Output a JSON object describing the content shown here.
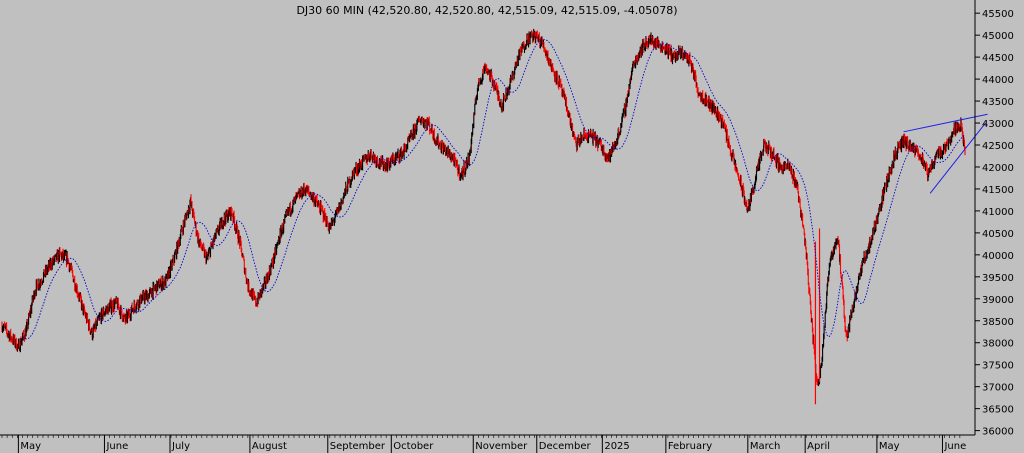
{
  "chart_data": {
    "type": "candlestick",
    "title": "DJ30 60 MIN (42,520.80, 42,520.80, 42,515.09, 42,515.09, -4.05078)",
    "ylim": [
      35900,
      45800
    ],
    "y_ticks": [
      36000,
      36500,
      37000,
      37500,
      38000,
      38500,
      39000,
      39500,
      40000,
      40500,
      41000,
      41500,
      42000,
      42500,
      43000,
      43500,
      44000,
      44500,
      45000,
      45500
    ],
    "y_tick_labels": [
      "36000",
      "36500",
      "37000",
      "37500",
      "38000",
      "38500",
      "39000",
      "39500",
      "40000",
      "40500",
      "41000",
      "41500",
      "42000",
      "42500",
      "43000",
      "43500",
      "44000",
      "44500",
      "45000",
      "45500"
    ],
    "x_range": [
      0,
      470
    ],
    "x_ticks": [
      {
        "label": "May",
        "x": 8
      },
      {
        "label": "June",
        "x": 50
      },
      {
        "label": "July",
        "x": 82
      },
      {
        "label": "August",
        "x": 121
      },
      {
        "label": "September",
        "x": 159
      },
      {
        "label": "October",
        "x": 190
      },
      {
        "label": "November",
        "x": 230
      },
      {
        "label": "December",
        "x": 261
      },
      {
        "label": "2025",
        "x": 293
      },
      {
        "label": "February",
        "x": 324
      },
      {
        "label": "March",
        "x": 364
      },
      {
        "label": "April",
        "x": 392
      },
      {
        "label": "May",
        "x": 427
      },
      {
        "label": "June",
        "x": 459
      }
    ],
    "price_path": [
      [
        0,
        38400
      ],
      [
        4,
        38150
      ],
      [
        8,
        37900
      ],
      [
        12,
        38300
      ],
      [
        16,
        39200
      ],
      [
        20,
        39500
      ],
      [
        24,
        39800
      ],
      [
        28,
        40000
      ],
      [
        32,
        39900
      ],
      [
        36,
        39300
      ],
      [
        40,
        38700
      ],
      [
        44,
        38200
      ],
      [
        48,
        38600
      ],
      [
        52,
        38800
      ],
      [
        56,
        38900
      ],
      [
        60,
        38500
      ],
      [
        64,
        38800
      ],
      [
        68,
        39000
      ],
      [
        72,
        39100
      ],
      [
        76,
        39300
      ],
      [
        80,
        39400
      ],
      [
        84,
        39900
      ],
      [
        88,
        40600
      ],
      [
        92,
        41200
      ],
      [
        96,
        40300
      ],
      [
        100,
        39900
      ],
      [
        104,
        40400
      ],
      [
        108,
        40800
      ],
      [
        112,
        41000
      ],
      [
        116,
        40300
      ],
      [
        120,
        39300
      ],
      [
        124,
        38900
      ],
      [
        128,
        39300
      ],
      [
        132,
        39800
      ],
      [
        136,
        40500
      ],
      [
        140,
        41000
      ],
      [
        144,
        41300
      ],
      [
        148,
        41500
      ],
      [
        152,
        41300
      ],
      [
        156,
        41000
      ],
      [
        160,
        40600
      ],
      [
        164,
        41000
      ],
      [
        168,
        41500
      ],
      [
        172,
        41900
      ],
      [
        176,
        42100
      ],
      [
        180,
        42300
      ],
      [
        184,
        42100
      ],
      [
        188,
        42050
      ],
      [
        192,
        42200
      ],
      [
        196,
        42350
      ],
      [
        200,
        42700
      ],
      [
        204,
        43100
      ],
      [
        208,
        43000
      ],
      [
        212,
        42600
      ],
      [
        216,
        42400
      ],
      [
        220,
        42200
      ],
      [
        224,
        41800
      ],
      [
        228,
        42200
      ],
      [
        232,
        43800
      ],
      [
        236,
        44300
      ],
      [
        240,
        43900
      ],
      [
        244,
        43400
      ],
      [
        248,
        43900
      ],
      [
        252,
        44500
      ],
      [
        256,
        44900
      ],
      [
        260,
        45000
      ],
      [
        264,
        44800
      ],
      [
        268,
        44300
      ],
      [
        272,
        43900
      ],
      [
        276,
        43300
      ],
      [
        280,
        42500
      ],
      [
        284,
        42700
      ],
      [
        288,
        42700
      ],
      [
        292,
        42500
      ],
      [
        296,
        42200
      ],
      [
        300,
        42600
      ],
      [
        304,
        43300
      ],
      [
        308,
        44300
      ],
      [
        312,
        44700
      ],
      [
        316,
        44900
      ],
      [
        320,
        44800
      ],
      [
        324,
        44700
      ],
      [
        328,
        44500
      ],
      [
        332,
        44600
      ],
      [
        336,
        44400
      ],
      [
        340,
        43700
      ],
      [
        344,
        43500
      ],
      [
        348,
        43300
      ],
      [
        352,
        43000
      ],
      [
        356,
        42300
      ],
      [
        360,
        41700
      ],
      [
        364,
        41000
      ],
      [
        368,
        41800
      ],
      [
        372,
        42500
      ],
      [
        376,
        42300
      ],
      [
        380,
        42000
      ],
      [
        384,
        42000
      ],
      [
        388,
        41600
      ],
      [
        392,
        40300
      ],
      [
        396,
        38000
      ],
      [
        398,
        37000
      ],
      [
        400,
        37600
      ],
      [
        404,
        39900
      ],
      [
        408,
        40400
      ],
      [
        412,
        38100
      ],
      [
        416,
        39000
      ],
      [
        420,
        39800
      ],
      [
        424,
        40300
      ],
      [
        428,
        41000
      ],
      [
        432,
        41700
      ],
      [
        436,
        42300
      ],
      [
        440,
        42600
      ],
      [
        444,
        42400
      ],
      [
        448,
        42300
      ],
      [
        452,
        41800
      ],
      [
        456,
        42300
      ],
      [
        460,
        42400
      ],
      [
        464,
        42800
      ],
      [
        468,
        43000
      ],
      [
        470,
        42300
      ]
    ],
    "spikes": [
      {
        "x": 397,
        "low": 36600,
        "high": 40300
      },
      {
        "x": 399,
        "low": 37100,
        "high": 40600
      }
    ],
    "trendlines": [
      {
        "from": [
          440,
          42800
        ],
        "to": [
          481,
          43200
        ]
      },
      {
        "from": [
          453,
          41400
        ],
        "to": [
          480,
          43000
        ]
      }
    ],
    "colors": {
      "background": "#c0c0c0",
      "up_candle": "#000000",
      "down_candle": "#ff0000",
      "moving_average": "#0000cc",
      "trendline": "#2020e8",
      "axis": "#000000"
    },
    "grid": false,
    "legend": "none"
  }
}
